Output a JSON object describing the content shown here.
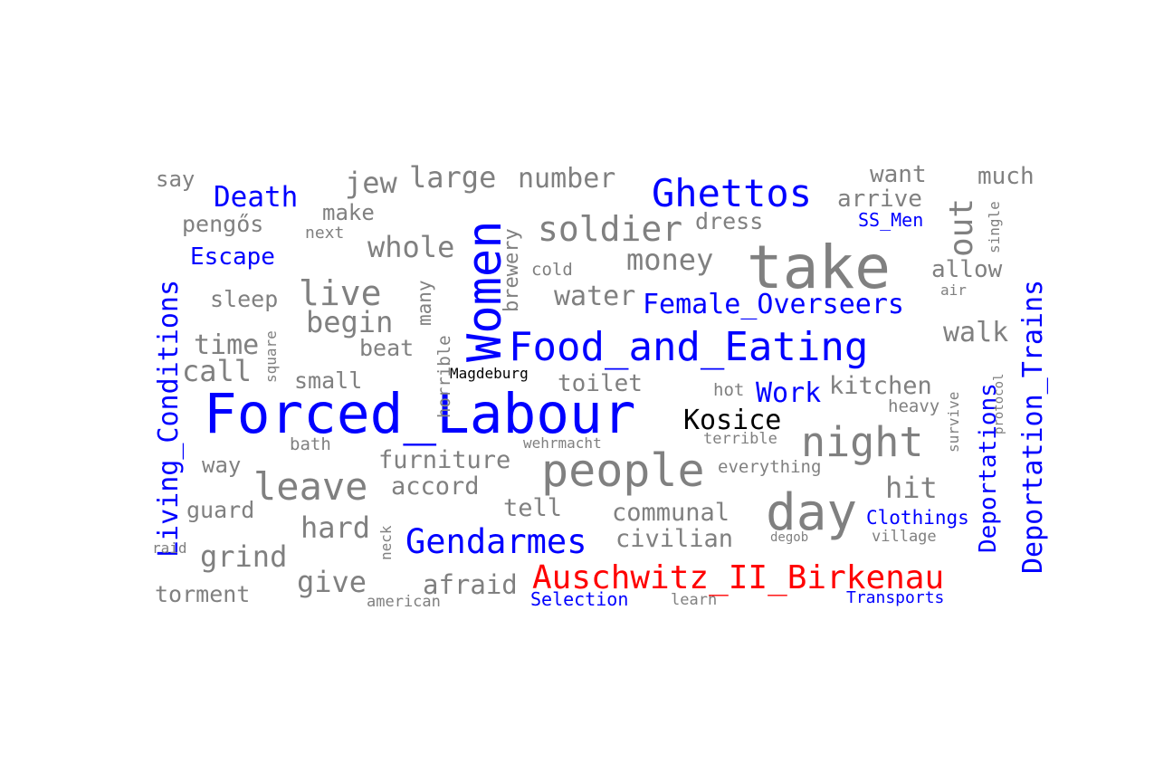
{
  "colors": {
    "topic": "#0000ff",
    "highlight": "#ff0000",
    "place": "#000000",
    "term": "#808080",
    "background": "#ffffff"
  },
  "words": [
    {
      "text": "Forced_Labour",
      "category": "topic"
    },
    {
      "text": "take",
      "category": "term"
    },
    {
      "text": "Women",
      "category": "topic"
    },
    {
      "text": "Food_and_Eating",
      "category": "topic"
    },
    {
      "text": "people",
      "category": "term"
    },
    {
      "text": "day",
      "category": "term"
    },
    {
      "text": "Ghettos",
      "category": "topic"
    },
    {
      "text": "night",
      "category": "term"
    },
    {
      "text": "Auschwitz_II_Birkenau",
      "category": "highlight"
    },
    {
      "text": "Gendarmes",
      "category": "topic"
    },
    {
      "text": "Living_Conditions",
      "category": "topic"
    },
    {
      "text": "Deportation_Trains",
      "category": "topic"
    },
    {
      "text": "leave",
      "category": "term"
    },
    {
      "text": "soldier",
      "category": "term"
    },
    {
      "text": "Female_Overseers",
      "category": "topic"
    },
    {
      "text": "live",
      "category": "term"
    },
    {
      "text": "Kosice",
      "category": "place"
    },
    {
      "text": "out",
      "category": "term"
    },
    {
      "text": "Death",
      "category": "topic"
    },
    {
      "text": "large",
      "category": "term"
    },
    {
      "text": "number",
      "category": "term"
    },
    {
      "text": "whole",
      "category": "term"
    },
    {
      "text": "money",
      "category": "term"
    },
    {
      "text": "Work",
      "category": "topic"
    },
    {
      "text": "Deportations",
      "category": "topic"
    },
    {
      "text": "jew",
      "category": "term"
    },
    {
      "text": "begin",
      "category": "term"
    },
    {
      "text": "time",
      "category": "term"
    },
    {
      "text": "call",
      "category": "term"
    },
    {
      "text": "water",
      "category": "term"
    },
    {
      "text": "walk",
      "category": "term"
    },
    {
      "text": "hit",
      "category": "term"
    },
    {
      "text": "hard",
      "category": "term"
    },
    {
      "text": "grind",
      "category": "term"
    },
    {
      "text": "give",
      "category": "term"
    },
    {
      "text": "afraid",
      "category": "term"
    },
    {
      "text": "furniture",
      "category": "term"
    },
    {
      "text": "accord",
      "category": "term"
    },
    {
      "text": "communal",
      "category": "term"
    },
    {
      "text": "civilian",
      "category": "term"
    },
    {
      "text": "kitchen",
      "category": "term"
    },
    {
      "text": "toilet",
      "category": "term"
    },
    {
      "text": "allow",
      "category": "term"
    },
    {
      "text": "arrive",
      "category": "term"
    },
    {
      "text": "want",
      "category": "term"
    },
    {
      "text": "much",
      "category": "term"
    },
    {
      "text": "Escape",
      "category": "topic"
    },
    {
      "text": "Clothings",
      "category": "topic"
    },
    {
      "text": "Selection",
      "category": "topic"
    },
    {
      "text": "Transports",
      "category": "topic"
    },
    {
      "text": "SS_Men",
      "category": "topic"
    },
    {
      "text": "dress",
      "category": "term"
    },
    {
      "text": "tell",
      "category": "term"
    },
    {
      "text": "torment",
      "category": "term"
    },
    {
      "text": "guard",
      "category": "term"
    },
    {
      "text": "pengős",
      "category": "term"
    },
    {
      "text": "sleep",
      "category": "term"
    },
    {
      "text": "small",
      "category": "term"
    },
    {
      "text": "beat",
      "category": "term"
    },
    {
      "text": "way",
      "category": "term"
    },
    {
      "text": "make",
      "category": "term"
    },
    {
      "text": "say",
      "category": "term"
    },
    {
      "text": "many",
      "category": "term"
    },
    {
      "text": "brewery",
      "category": "term"
    },
    {
      "text": "horrible",
      "category": "term"
    },
    {
      "text": "Magdeburg",
      "category": "place"
    },
    {
      "text": "cold",
      "category": "term"
    },
    {
      "text": "next",
      "category": "term"
    },
    {
      "text": "everything",
      "category": "term"
    },
    {
      "text": "heavy",
      "category": "term"
    },
    {
      "text": "hot",
      "category": "term"
    },
    {
      "text": "terrible",
      "category": "term"
    },
    {
      "text": "wehrmacht",
      "category": "term"
    },
    {
      "text": "bath",
      "category": "term"
    },
    {
      "text": "american",
      "category": "term"
    },
    {
      "text": "learn",
      "category": "term"
    },
    {
      "text": "village",
      "category": "term"
    },
    {
      "text": "raid",
      "category": "term"
    },
    {
      "text": "neck",
      "category": "term"
    },
    {
      "text": "square",
      "category": "term"
    },
    {
      "text": "survive",
      "category": "term"
    },
    {
      "text": "protocol",
      "category": "term"
    },
    {
      "text": "single",
      "category": "term"
    },
    {
      "text": "air",
      "category": "term"
    },
    {
      "text": "degob",
      "category": "term"
    }
  ]
}
